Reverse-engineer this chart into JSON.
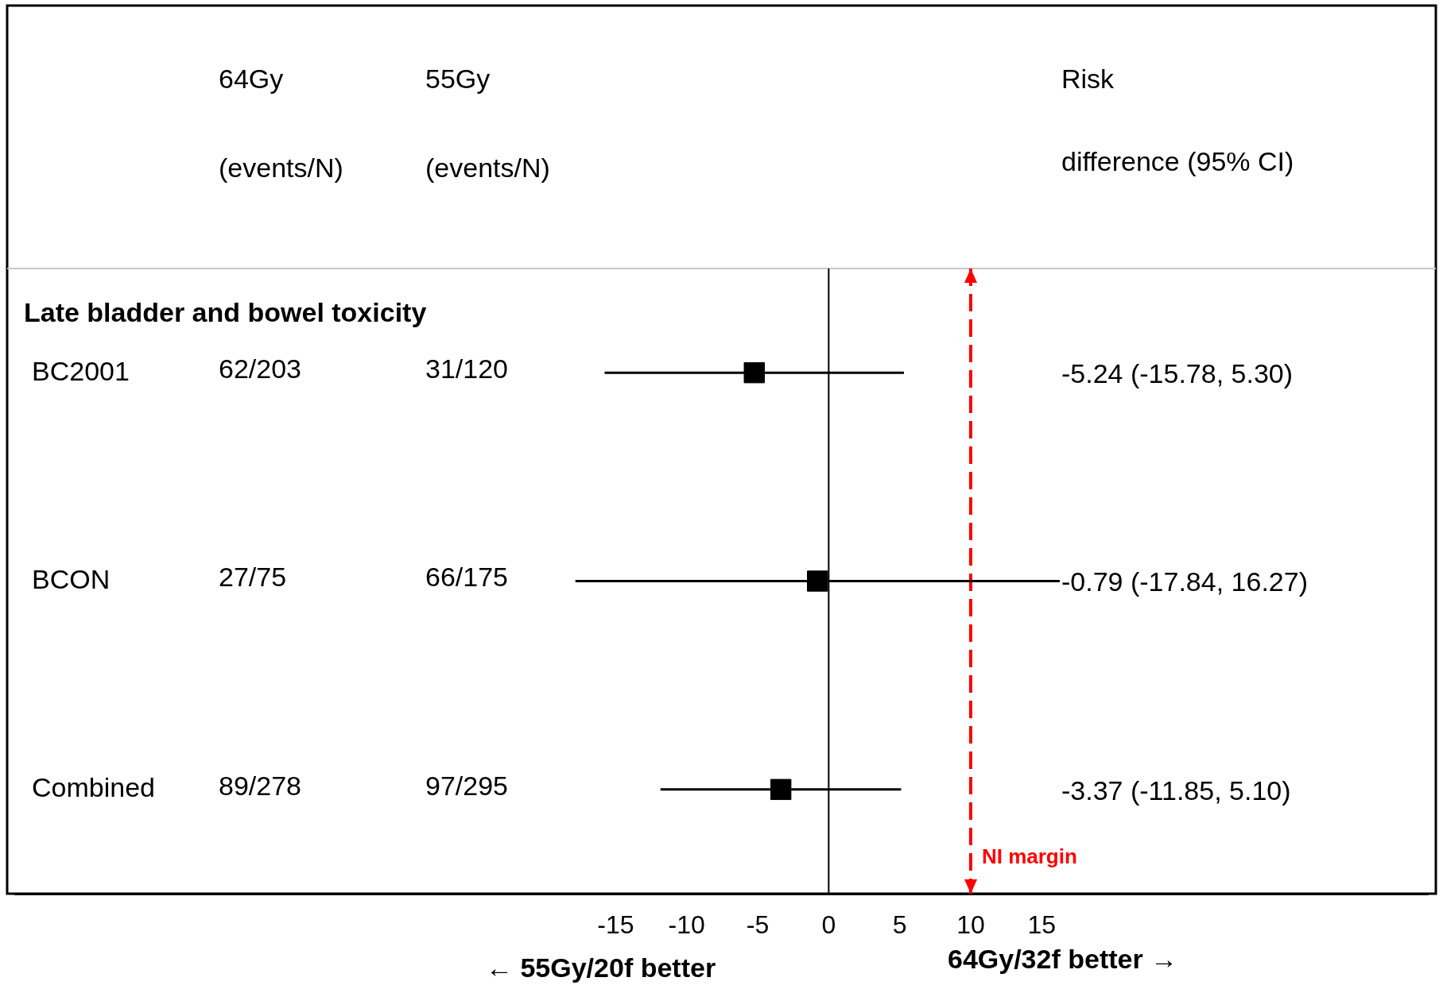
{
  "chart_data": {
    "type": "scatter",
    "orientation": "horizontal",
    "title": "Late bladder and bowel toxicity",
    "categories": [
      "BC2001",
      "BCON",
      "Combined"
    ],
    "values": [
      -5.24,
      -0.79,
      -3.37
    ],
    "errors": [
      [
        -15.78,
        5.3
      ],
      [
        -17.84,
        16.27
      ],
      [
        -11.85,
        5.1
      ]
    ],
    "color": "#000000",
    "marker": "square",
    "grid": false,
    "xlim": [
      -57.3,
      42.2
    ],
    "xticks": [
      -15,
      -10,
      -5,
      0,
      5,
      10,
      15
    ],
    "ref_lines": [
      {
        "axis": "x",
        "value": 0,
        "color": "#000000",
        "line_style": "solid"
      },
      {
        "axis": "x",
        "value": 10,
        "label": "NI margin",
        "color": "#ff0000",
        "line_style": "dashed"
      }
    ],
    "annotations": [
      "64Gy",
      "(events/N)",
      "55Gy",
      "(events/N)",
      "Risk",
      "difference (95% CI)",
      "← 55Gy/20f better",
      "64Gy/32f better →",
      "62/203",
      "31/120",
      "-5.24 (-15.78, 5.30)",
      "27/75",
      "66/175",
      "-0.79 (-17.84, 16.27)",
      "89/278",
      "97/295",
      "-3.37 (-11.85, 5.10)"
    ]
  }
}
